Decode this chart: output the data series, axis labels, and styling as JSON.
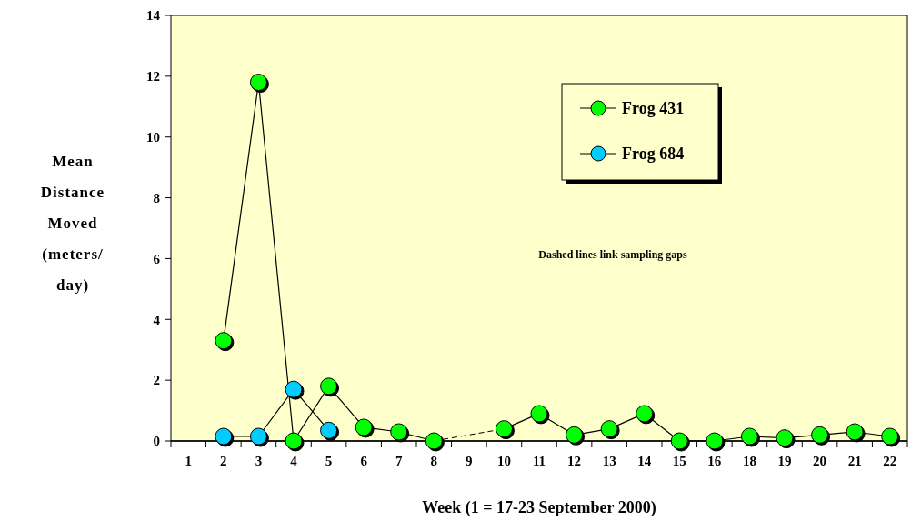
{
  "chart_data": {
    "type": "line",
    "xlabel": "Week (1 = 17-23 September 2000)",
    "ylabel": "Mean Distance Moved (meters/ day)",
    "categories": [
      "1",
      "2",
      "3",
      "4",
      "5",
      "6",
      "7",
      "8",
      "9",
      "10",
      "11",
      "12",
      "13",
      "14",
      "15",
      "16",
      "18",
      "19",
      "20",
      "21",
      "22"
    ],
    "series": [
      {
        "name": "Frog 431",
        "color": "#00ff00",
        "values": [
          null,
          3.3,
          11.8,
          0,
          1.8,
          0.45,
          0.3,
          0,
          null,
          0.4,
          0.9,
          0.2,
          0.4,
          0.9,
          0,
          0,
          0.15,
          0.1,
          0.2,
          0.3,
          0.15
        ]
      },
      {
        "name": "Frog 684",
        "color": "#00ccff",
        "values": [
          null,
          0.15,
          0.15,
          1.7,
          0.35,
          null,
          null,
          null,
          null,
          null,
          null,
          null,
          null,
          null,
          null,
          null,
          null,
          null,
          null,
          null,
          null
        ]
      }
    ],
    "ylim": [
      0,
      14
    ],
    "yticks": [
      0,
      2,
      4,
      6,
      8,
      10,
      12,
      14
    ],
    "marker": "circle",
    "line_style": "solid",
    "legend": "top right",
    "grid": false,
    "annotations": [
      "Dashed lines link sampling gaps"
    ]
  }
}
